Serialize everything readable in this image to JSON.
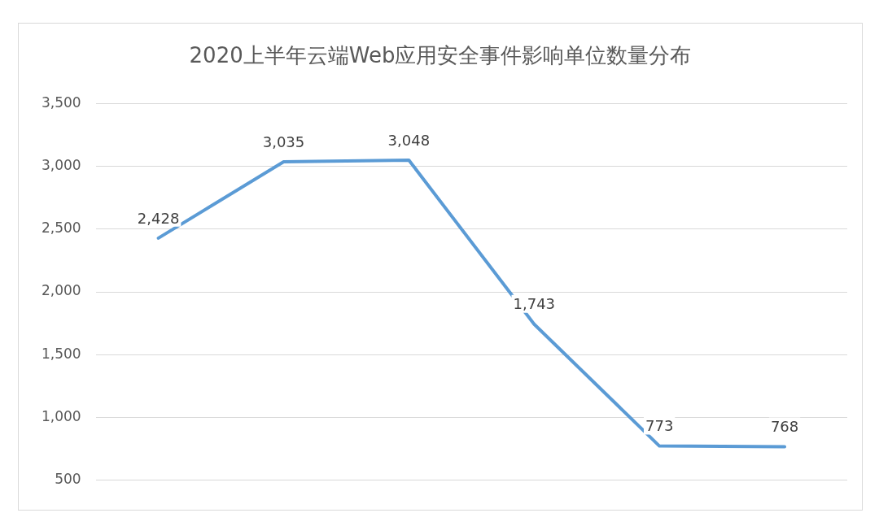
{
  "chart_data": {
    "type": "line",
    "title": "2020上半年云端Web应用安全事件影响单位数量分布",
    "categories": [
      null,
      null,
      null,
      null,
      null,
      null
    ],
    "series": [
      {
        "color": "#5b9bd5",
        "values": [
          2428,
          3035,
          3048,
          1743,
          773,
          768
        ],
        "value_labels": [
          "2,428",
          "3,035",
          "3,048",
          "1,743",
          "773",
          "768"
        ]
      }
    ],
    "ylim": [
      500,
      3500
    ],
    "yticks": [
      {
        "value": 500,
        "label": "500"
      },
      {
        "value": 1000,
        "label": "1,000"
      },
      {
        "value": 1500,
        "label": "1,500"
      },
      {
        "value": 2000,
        "label": "2,000"
      },
      {
        "value": 2500,
        "label": "2,500"
      },
      {
        "value": 3000,
        "label": "3,000"
      },
      {
        "value": 3500,
        "label": "3,500"
      }
    ],
    "grid": "y",
    "marker": "none",
    "legend": false
  }
}
